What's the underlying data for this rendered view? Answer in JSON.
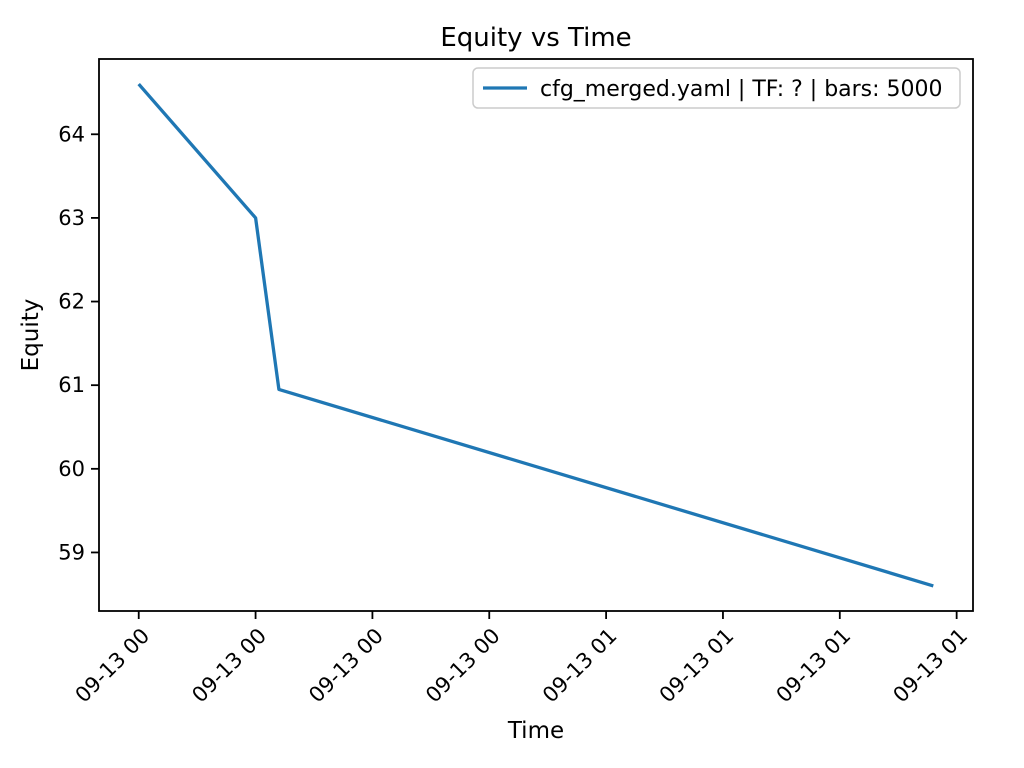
{
  "figure": {
    "background_color": "#ffffff",
    "axes_edge_color": "#000000",
    "legend_border_color": "#cccccc"
  },
  "chart_data": {
    "type": "line",
    "title": "Equity vs Time",
    "xlabel": "Time",
    "ylabel": "Equity",
    "grid": false,
    "legend_position": "upper right",
    "series": [
      {
        "name": "cfg_merged.yaml | TF: ? | bars: 5000",
        "color": "#1f77b4",
        "x_minutes": [
          0,
          15,
          18,
          102
        ],
        "x_times": [
          "09-13 00:00",
          "09-13 00:15",
          "09-13 00:18",
          "09-13 01:42"
        ],
        "values": [
          64.6,
          63.0,
          60.95,
          58.6
        ]
      }
    ],
    "x_ticks": {
      "minutes": [
        0,
        15,
        30,
        45,
        60,
        75,
        90,
        105
      ],
      "labels": [
        "09-13 00",
        "09-13 00",
        "09-13 00",
        "09-13 00",
        "09-13 01",
        "09-13 01",
        "09-13 01",
        "09-13 01"
      ],
      "rotation_deg": 45
    },
    "y_ticks": [
      59,
      60,
      61,
      62,
      63,
      64
    ],
    "xlim_minutes": [
      -5.1,
      107.1
    ],
    "ylim": [
      58.3,
      64.9
    ]
  }
}
